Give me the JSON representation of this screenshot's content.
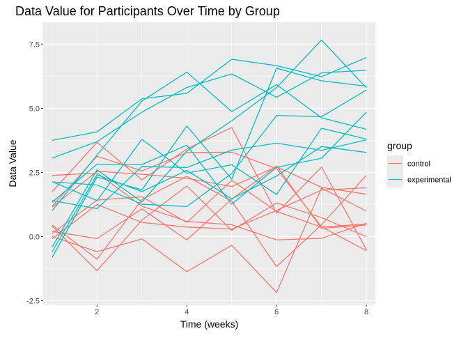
{
  "chart_data": {
    "type": "line",
    "title": "Data Value for Participants Over Time by Group",
    "xlabel": "Time (weeks)",
    "ylabel": "Data Value",
    "xlim": [
      0.8,
      8.2
    ],
    "ylim": [
      -2.65,
      8.35
    ],
    "x_ticks": [
      2,
      4,
      6,
      8
    ],
    "x_tick_labels": [
      "2",
      "4",
      "6",
      "8"
    ],
    "y_ticks": [
      -2.5,
      0,
      2.5,
      5,
      7.5
    ],
    "y_tick_labels": [
      "-2.5",
      "0.0",
      "2.5",
      "5.0",
      "7.5"
    ],
    "grid": true,
    "legend": {
      "title": "group",
      "position": "right",
      "entries": [
        {
          "label": "control",
          "color": "#F8766D"
        },
        {
          "label": "experimental",
          "color": "#00BFC4"
        }
      ]
    },
    "x": [
      1,
      2,
      3,
      4,
      5,
      6,
      7,
      8
    ],
    "series": [
      {
        "group": "control",
        "color": "#F8766D",
        "values": [
          0.2,
          -0.08,
          1.08,
          -0.13,
          1.46,
          2.75,
          0.32,
          0.45
        ]
      },
      {
        "group": "control",
        "color": "#F8766D",
        "values": [
          1.15,
          2.54,
          2.43,
          2.27,
          1.95,
          2.72,
          1.92,
          1.65
        ]
      },
      {
        "group": "control",
        "color": "#F8766D",
        "values": [
          1.75,
          3.67,
          2.21,
          3.41,
          4.25,
          0.91,
          2.71,
          -0.51
        ]
      },
      {
        "group": "control",
        "color": "#F8766D",
        "values": [
          0.12,
          1.42,
          1.55,
          0.55,
          2.19,
          0.98,
          0.37,
          0.49
        ]
      },
      {
        "group": "control",
        "color": "#F8766D",
        "values": [
          0.45,
          -0.88,
          1.44,
          2.35,
          1.38,
          -1.17,
          0.46,
          2.39
        ]
      },
      {
        "group": "control",
        "color": "#F8766D",
        "values": [
          2.38,
          2.48,
          1.18,
          0.59,
          0.46,
          -0.13,
          -0.07,
          0.52
        ]
      },
      {
        "group": "control",
        "color": "#F8766D",
        "values": [
          -0.08,
          1.25,
          0.55,
          0.37,
          0.29,
          1.02,
          1.81,
          1.9
        ]
      },
      {
        "group": "control",
        "color": "#F8766D",
        "values": [
          0.0,
          -0.59,
          -0.09,
          -1.37,
          -0.34,
          -2.18,
          1.89,
          0.99
        ]
      },
      {
        "group": "control",
        "color": "#F8766D",
        "values": [
          0.4,
          -1.33,
          0.64,
          1.97,
          0.24,
          1.31,
          0.74,
          0.0
        ]
      },
      {
        "group": "control",
        "color": "#F8766D",
        "values": [
          1.18,
          3.13,
          2.56,
          3.27,
          3.29,
          2.65,
          0.38,
          -0.55
        ]
      },
      {
        "group": "experimental",
        "color": "#00BFC4",
        "values": [
          3.75,
          4.08,
          5.37,
          5.58,
          6.91,
          6.66,
          6.23,
          6.98
        ]
      },
      {
        "group": "experimental",
        "color": "#00BFC4",
        "values": [
          -0.81,
          2.32,
          1.82,
          4.31,
          2.24,
          6.56,
          6.07,
          5.86
        ]
      },
      {
        "group": "experimental",
        "color": "#00BFC4",
        "values": [
          3.06,
          3.7,
          4.85,
          5.81,
          6.34,
          5.43,
          6.38,
          6.48
        ]
      },
      {
        "group": "experimental",
        "color": "#00BFC4",
        "values": [
          1.34,
          2.82,
          2.81,
          3.56,
          1.26,
          2.7,
          3.05,
          4.85
        ]
      },
      {
        "group": "experimental",
        "color": "#00BFC4",
        "values": [
          2.14,
          1.4,
          3.79,
          2.47,
          2.8,
          1.64,
          4.22,
          3.8
        ]
      },
      {
        "group": "experimental",
        "color": "#00BFC4",
        "values": [
          -0.59,
          2.41,
          1.75,
          2.58,
          1.47,
          2.36,
          3.51,
          3.28
        ]
      },
      {
        "group": "experimental",
        "color": "#00BFC4",
        "values": [
          -0.41,
          2.6,
          1.35,
          3.33,
          4.51,
          5.81,
          7.66,
          5.8
        ]
      },
      {
        "group": "experimental",
        "color": "#00BFC4",
        "values": [
          1.4,
          1.09,
          2.73,
          2.69,
          3.37,
          3.64,
          3.36,
          3.77
        ]
      },
      {
        "group": "experimental",
        "color": "#00BFC4",
        "values": [
          1.01,
          3.18,
          5.28,
          6.41,
          4.87,
          5.92,
          4.63,
          4.18
        ]
      },
      {
        "group": "experimental",
        "color": "#00BFC4",
        "values": [
          2.13,
          2.01,
          1.26,
          1.17,
          2.46,
          4.72,
          4.67,
          5.71
        ]
      }
    ]
  }
}
